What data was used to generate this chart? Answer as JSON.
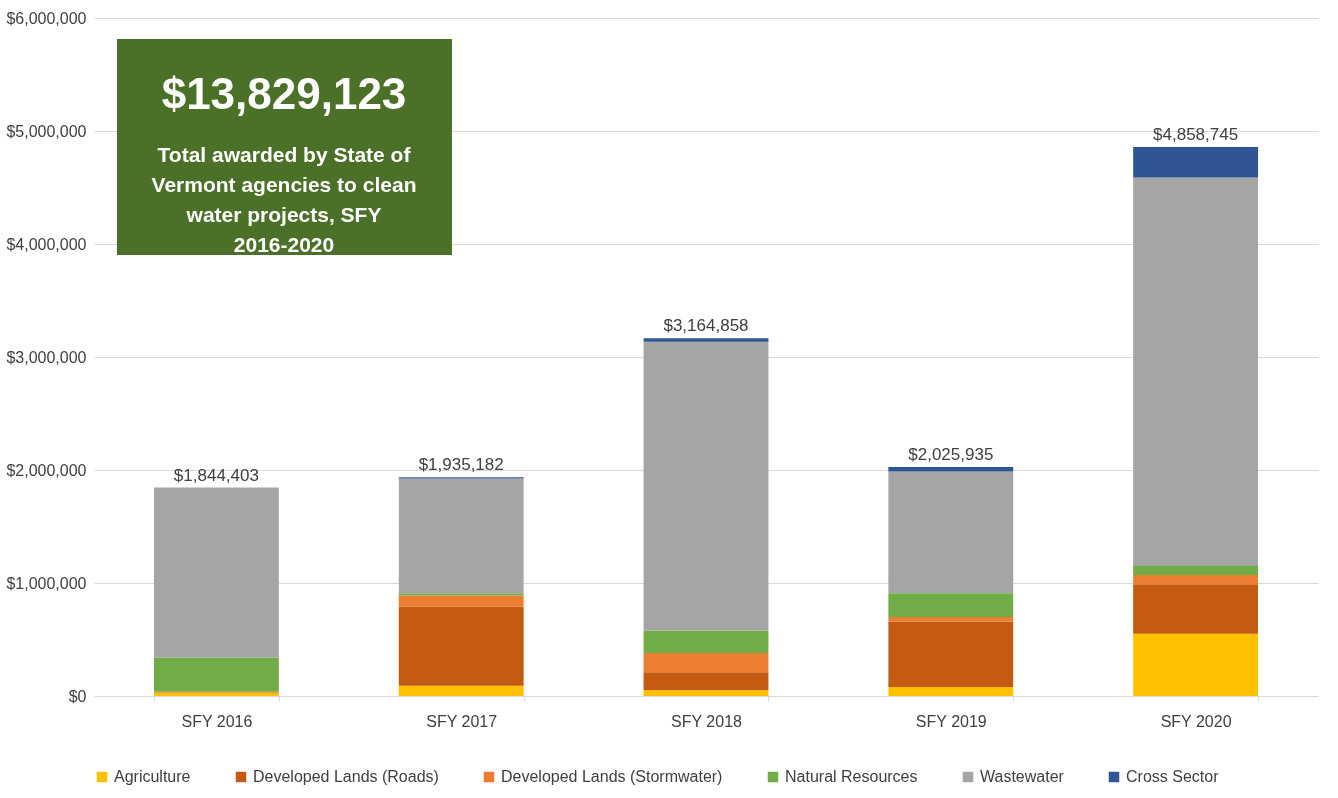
{
  "chart_data": {
    "type": "bar",
    "stacked": true,
    "categories": [
      "SFY 2016",
      "SFY 2017",
      "SFY 2018",
      "SFY 2019",
      "SFY 2020"
    ],
    "series": [
      {
        "name": "Agriculture",
        "color": "#ffc000",
        "values": [
          30000,
          90000,
          50000,
          80000,
          550000
        ]
      },
      {
        "name": "Developed Lands (Roads)",
        "color": "#c55a11",
        "values": [
          10000,
          700000,
          160000,
          580000,
          440000
        ]
      },
      {
        "name": "Developed Lands (Stormwater)",
        "color": "#ed7d31",
        "values": [
          null,
          100000,
          170000,
          40000,
          80000
        ]
      },
      {
        "name": "Natural Resources",
        "color": "#70ad47",
        "values": [
          300000,
          20000,
          200000,
          210000,
          80000
        ]
      },
      {
        "name": "Wastewater",
        "color": "#a5a5a5",
        "values": [
          1504403,
          1015182,
          2554858,
          1075935,
          3438745
        ]
      },
      {
        "name": "Cross Sector",
        "color": "#2f5597",
        "values": [
          null,
          10000,
          30000,
          40000,
          270000
        ]
      }
    ],
    "totals": [
      "$1,844,403",
      "$1,935,182",
      "$3,164,858",
      "$2,025,935",
      "$4,858,745"
    ],
    "ylim": [
      0,
      6000000
    ],
    "yticks": [
      {
        "value": 0,
        "label": "$0"
      },
      {
        "value": 1000000,
        "label": "$1,000,000"
      },
      {
        "value": 2000000,
        "label": "$2,000,000"
      },
      {
        "value": 3000000,
        "label": "$3,000,000"
      },
      {
        "value": 4000000,
        "label": "$4,000,000"
      },
      {
        "value": 5000000,
        "label": "$5,000,000"
      },
      {
        "value": 6000000,
        "label": "$6,000,000"
      }
    ],
    "grid": "y",
    "legend": "bottom",
    "annotations": [
      "$13,829,123",
      "Total awarded by State of Vermont agencies to clean water projects, SFY 2016-2020"
    ]
  }
}
